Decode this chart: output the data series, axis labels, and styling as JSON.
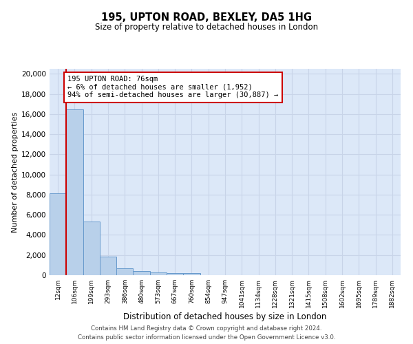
{
  "title1": "195, UPTON ROAD, BEXLEY, DA5 1HG",
  "title2": "Size of property relative to detached houses in London",
  "xlabel": "Distribution of detached houses by size in London",
  "ylabel": "Number of detached properties",
  "categories": [
    "12sqm",
    "106sqm",
    "199sqm",
    "293sqm",
    "386sqm",
    "480sqm",
    "573sqm",
    "667sqm",
    "760sqm",
    "854sqm",
    "947sqm",
    "1041sqm",
    "1134sqm",
    "1228sqm",
    "1321sqm",
    "1415sqm",
    "1508sqm",
    "1602sqm",
    "1695sqm",
    "1789sqm",
    "1882sqm"
  ],
  "values": [
    8100,
    16500,
    5300,
    1850,
    700,
    380,
    290,
    230,
    190,
    0,
    0,
    0,
    0,
    0,
    0,
    0,
    0,
    0,
    0,
    0,
    0
  ],
  "bar_color": "#b8d0ea",
  "bar_edge_color": "#6699cc",
  "vline_color": "#cc0000",
  "annotation_text": "195 UPTON ROAD: 76sqm\n← 6% of detached houses are smaller (1,952)\n94% of semi-detached houses are larger (30,887) →",
  "annotation_box_color": "#ffffff",
  "annotation_box_edge": "#cc0000",
  "ylim": [
    0,
    20500
  ],
  "yticks": [
    0,
    2000,
    4000,
    6000,
    8000,
    10000,
    12000,
    14000,
    16000,
    18000,
    20000
  ],
  "grid_color": "#c8d4e8",
  "bg_color": "#dce8f8",
  "footer1": "Contains HM Land Registry data © Crown copyright and database right 2024.",
  "footer2": "Contains public sector information licensed under the Open Government Licence v3.0."
}
